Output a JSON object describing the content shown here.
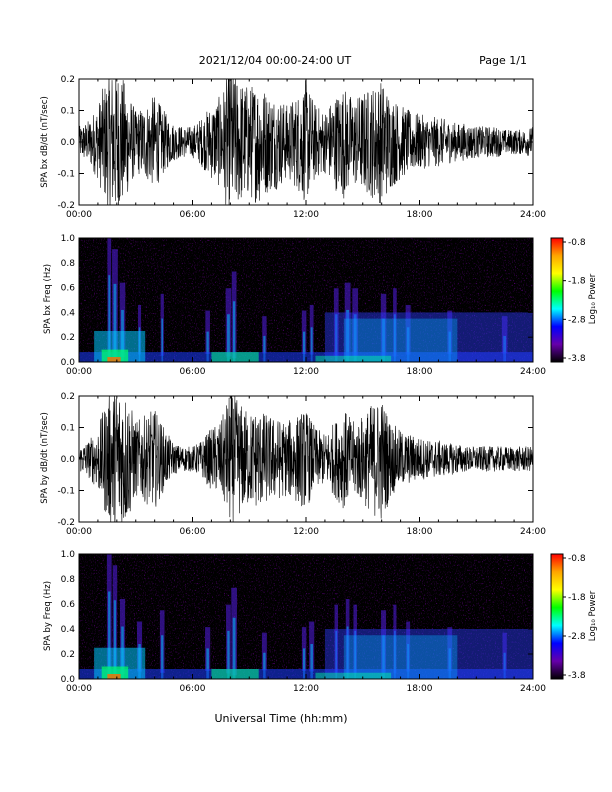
{
  "header": {
    "date_range": "2021/12/04  00:00-24:00 UT",
    "page": "Page 1/1"
  },
  "footer": {
    "xlabel": "Universal Time (hh:mm)"
  },
  "colorbar": {
    "label": "Log₁₀ Power",
    "ticks": [
      "-0.8",
      "-1.8",
      "-2.8",
      "-3.8"
    ],
    "colors": [
      "#ff0000",
      "#ffa500",
      "#ffff00",
      "#00ff00",
      "#00ffff",
      "#0000ff",
      "#6600aa",
      "#000000"
    ]
  },
  "chart_data": [
    {
      "type": "line",
      "name": "bx-time-series",
      "ylabel": "SPA bx dB/dt (nT/sec)",
      "xlim": [
        0,
        24
      ],
      "ylim": [
        -0.2,
        0.2
      ],
      "xticks": [
        "00:00",
        "06:00",
        "12:00",
        "18:00",
        "24:00"
      ],
      "yticks": [
        "0.2",
        "0.1",
        "0.0",
        "-0.1",
        "-0.2"
      ],
      "ytick_values": [
        0.2,
        0.1,
        0.0,
        -0.1,
        -0.2
      ],
      "amplitude_envelope": {
        "x": [
          0,
          0.5,
          1,
          1.5,
          2,
          2.5,
          3,
          3.5,
          4,
          4.5,
          5,
          5.5,
          6,
          6.5,
          7,
          7.5,
          8,
          8.5,
          9,
          9.5,
          10,
          10.5,
          11,
          11.5,
          12,
          12.5,
          13,
          13.5,
          14,
          14.5,
          15,
          15.5,
          16,
          16.5,
          17,
          17.5,
          18,
          18.5,
          19,
          19.5,
          20,
          20.5,
          21,
          21.5,
          22,
          22.5,
          23,
          23.5,
          24
        ],
        "y": [
          0.05,
          0.07,
          0.12,
          0.22,
          0.25,
          0.18,
          0.1,
          0.12,
          0.15,
          0.1,
          0.06,
          0.05,
          0.05,
          0.08,
          0.12,
          0.15,
          0.25,
          0.2,
          0.18,
          0.2,
          0.16,
          0.15,
          0.12,
          0.15,
          0.2,
          0.12,
          0.1,
          0.15,
          0.18,
          0.14,
          0.16,
          0.18,
          0.2,
          0.15,
          0.12,
          0.1,
          0.09,
          0.08,
          0.08,
          0.07,
          0.06,
          0.06,
          0.05,
          0.05,
          0.05,
          0.04,
          0.04,
          0.04,
          0.05
        ]
      }
    },
    {
      "type": "heatmap",
      "name": "bx-spectrogram",
      "ylabel": "SPA bx Freq (Hz)",
      "xlim": [
        0,
        24
      ],
      "ylim": [
        0,
        1.0
      ],
      "xticks": [
        "00:00",
        "06:00",
        "12:00",
        "18:00",
        "24:00"
      ],
      "yticks": [
        "1.0",
        "0.8",
        "0.6",
        "0.4",
        "0.2",
        "0.0"
      ],
      "ytick_values": [
        1.0,
        0.8,
        0.6,
        0.4,
        0.2,
        0.0
      ],
      "zlim": [
        -3.8,
        -0.8
      ]
    },
    {
      "type": "line",
      "name": "by-time-series",
      "ylabel": "SPA by dB/dt (nT/sec)",
      "xlim": [
        0,
        24
      ],
      "ylim": [
        -0.2,
        0.2
      ],
      "xticks": [
        "00:00",
        "06:00",
        "12:00",
        "18:00",
        "24:00"
      ],
      "yticks": [
        "0.2",
        "0.1",
        "0.0",
        "-0.1",
        "-0.2"
      ],
      "ytick_values": [
        0.2,
        0.1,
        0.0,
        -0.1,
        -0.2
      ],
      "amplitude_envelope": {
        "x": [
          0,
          0.5,
          1,
          1.5,
          2,
          2.5,
          3,
          3.5,
          4,
          4.5,
          5,
          5.5,
          6,
          6.5,
          7,
          7.5,
          8,
          8.5,
          9,
          9.5,
          10,
          10.5,
          11,
          11.5,
          12,
          12.5,
          13,
          13.5,
          14,
          14.5,
          15,
          15.5,
          16,
          16.5,
          17,
          17.5,
          18,
          18.5,
          19,
          19.5,
          20,
          20.5,
          21,
          21.5,
          22,
          22.5,
          23,
          23.5,
          24
        ],
        "y": [
          0.04,
          0.06,
          0.1,
          0.2,
          0.25,
          0.22,
          0.12,
          0.14,
          0.16,
          0.1,
          0.05,
          0.04,
          0.04,
          0.06,
          0.1,
          0.12,
          0.22,
          0.18,
          0.15,
          0.16,
          0.14,
          0.13,
          0.12,
          0.14,
          0.16,
          0.1,
          0.08,
          0.12,
          0.16,
          0.12,
          0.14,
          0.18,
          0.2,
          0.12,
          0.09,
          0.08,
          0.07,
          0.06,
          0.06,
          0.05,
          0.05,
          0.04,
          0.04,
          0.04,
          0.04,
          0.04,
          0.04,
          0.04,
          0.04
        ]
      }
    },
    {
      "type": "heatmap",
      "name": "by-spectrogram",
      "ylabel": "SPA by Freq (Hz)",
      "xlim": [
        0,
        24
      ],
      "ylim": [
        0,
        1.0
      ],
      "xticks": [
        "00:00",
        "06:00",
        "12:00",
        "18:00",
        "24:00"
      ],
      "yticks": [
        "1.0",
        "0.8",
        "0.6",
        "0.4",
        "0.2",
        "0.0"
      ],
      "ytick_values": [
        1.0,
        0.8,
        0.6,
        0.4,
        0.2,
        0.0
      ],
      "zlim": [
        -3.8,
        -0.8
      ]
    }
  ]
}
